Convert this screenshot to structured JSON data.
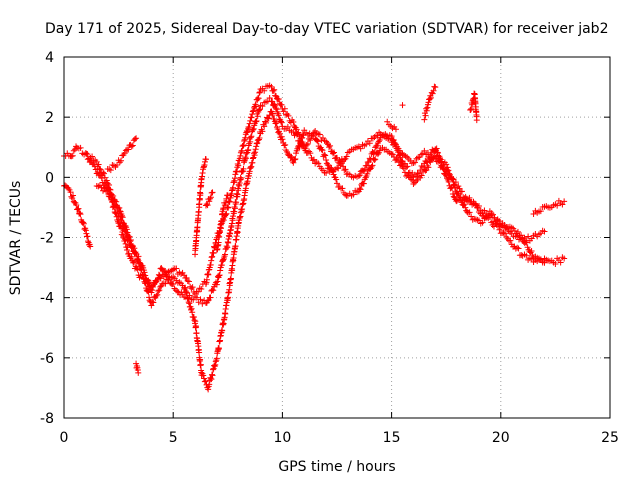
{
  "chart_data": {
    "type": "scatter",
    "title": "Day 171 of 2025, Sidereal Day-to-day VTEC variation (SDTVAR) for receiver jab2",
    "xlabel": "GPS time / hours",
    "ylabel": "SDTVAR / TECUs",
    "xlim": [
      0,
      25
    ],
    "ylim": [
      -8,
      4
    ],
    "x_ticks": [
      0,
      5,
      10,
      15,
      20,
      25
    ],
    "y_ticks": [
      -8,
      -6,
      -4,
      -2,
      0,
      2,
      4
    ],
    "grid": true,
    "marker": "+",
    "series": [
      {
        "name": "SDTVAR",
        "color": "#ff0000",
        "tracks": [
          [
            [
              0.0,
              0.8
            ],
            [
              0.3,
              0.7
            ],
            [
              0.6,
              1.0
            ],
            [
              1.0,
              0.8
            ],
            [
              1.5,
              0.2
            ],
            [
              2.0,
              -0.4
            ],
            [
              2.5,
              -1.5
            ],
            [
              3.0,
              -2.6
            ],
            [
              3.5,
              -3.3
            ],
            [
              4.0,
              -3.6
            ],
            [
              4.5,
              -3.3
            ],
            [
              5.0,
              -3.0
            ],
            [
              5.5,
              -3.3
            ],
            [
              6.0,
              -3.8
            ],
            [
              6.5,
              -3.5
            ],
            [
              7.0,
              -2.0
            ],
            [
              7.5,
              -1.0
            ],
            [
              8.0,
              0.5
            ],
            [
              8.5,
              1.8
            ],
            [
              9.0,
              2.9
            ],
            [
              9.5,
              3.0
            ],
            [
              10.0,
              2.3
            ],
            [
              10.5,
              1.8
            ],
            [
              11.0,
              1.0
            ],
            [
              11.5,
              0.5
            ],
            [
              12.0,
              0.2
            ],
            [
              12.5,
              0.3
            ],
            [
              13.0,
              0.8
            ],
            [
              13.5,
              1.0
            ],
            [
              14.0,
              1.2
            ],
            [
              14.5,
              1.5
            ],
            [
              15.0,
              1.2
            ],
            [
              15.5,
              0.8
            ],
            [
              16.0,
              0.5
            ],
            [
              16.5,
              0.8
            ],
            [
              17.0,
              0.6
            ],
            [
              17.5,
              0.2
            ],
            [
              18.0,
              -0.3
            ],
            [
              18.5,
              -0.8
            ],
            [
              19.0,
              -1.0
            ],
            [
              19.5,
              -1.2
            ],
            [
              20.0,
              -1.5
            ],
            [
              20.5,
              -1.7
            ],
            [
              21.0,
              -2.0
            ],
            [
              21.5,
              -2.6
            ],
            [
              22.0,
              -2.8
            ],
            [
              22.5,
              -2.8
            ],
            [
              22.9,
              -2.7
            ]
          ],
          [
            [
              0.0,
              -0.2
            ],
            [
              0.3,
              -0.5
            ],
            [
              0.6,
              -1.0
            ],
            [
              1.0,
              -1.8
            ],
            [
              1.2,
              -2.3
            ]
          ],
          [
            [
              1.5,
              -0.2
            ],
            [
              2.0,
              -0.5
            ],
            [
              2.5,
              -1.0
            ],
            [
              3.0,
              -2.0
            ],
            [
              3.5,
              -3.0
            ],
            [
              4.0,
              -4.2
            ],
            [
              4.5,
              -3.6
            ],
            [
              5.0,
              -3.3
            ],
            [
              5.5,
              -3.6
            ],
            [
              6.0,
              -4.8
            ],
            [
              6.3,
              -6.5
            ],
            [
              6.6,
              -7.0
            ],
            [
              7.0,
              -6.0
            ],
            [
              7.5,
              -4.0
            ],
            [
              8.0,
              -1.5
            ],
            [
              8.5,
              0.2
            ],
            [
              9.0,
              1.5
            ],
            [
              9.5,
              2.2
            ],
            [
              10.0,
              1.2
            ],
            [
              10.5,
              0.5
            ],
            [
              11.0,
              1.5
            ],
            [
              11.5,
              1.3
            ],
            [
              12.0,
              0.6
            ],
            [
              12.5,
              -0.2
            ],
            [
              13.0,
              -0.6
            ],
            [
              13.5,
              -0.5
            ],
            [
              14.0,
              0.3
            ],
            [
              14.5,
              1.0
            ],
            [
              15.0,
              0.8
            ],
            [
              15.5,
              0.3
            ],
            [
              16.0,
              -0.2
            ],
            [
              16.5,
              0.2
            ],
            [
              17.0,
              0.8
            ],
            [
              17.5,
              0.4
            ],
            [
              18.0,
              -0.5
            ],
            [
              18.5,
              -1.2
            ],
            [
              19.0,
              -1.5
            ],
            [
              19.5,
              -1.3
            ],
            [
              20.0,
              -1.6
            ],
            [
              20.5,
              -1.9
            ],
            [
              21.0,
              -2.1
            ],
            [
              21.5,
              -2.0
            ],
            [
              22.0,
              -1.8
            ]
          ],
          [
            [
              2.0,
              0.2
            ],
            [
              2.5,
              0.5
            ],
            [
              3.0,
              1.0
            ],
            [
              3.3,
              1.3
            ]
          ],
          [
            [
              1.0,
              0.8
            ],
            [
              1.5,
              0.5
            ],
            [
              2.0,
              -0.2
            ],
            [
              2.5,
              -1.2
            ],
            [
              3.0,
              -2.2
            ],
            [
              3.5,
              -2.8
            ],
            [
              4.0,
              -3.8
            ],
            [
              4.5,
              -3.0
            ],
            [
              5.0,
              -3.6
            ],
            [
              5.5,
              -4.0
            ],
            [
              6.0,
              -4.0
            ],
            [
              6.5,
              -4.2
            ],
            [
              7.0,
              -3.5
            ],
            [
              7.5,
              -2.2
            ],
            [
              8.0,
              -0.3
            ],
            [
              8.5,
              1.2
            ],
            [
              9.0,
              2.4
            ],
            [
              9.5,
              2.6
            ],
            [
              10.0,
              1.7
            ],
            [
              10.5,
              1.5
            ],
            [
              11.0,
              1.0
            ],
            [
              11.5,
              1.5
            ],
            [
              12.0,
              1.2
            ],
            [
              12.5,
              0.6
            ],
            [
              13.0,
              0.1
            ],
            [
              13.5,
              0.0
            ],
            [
              14.0,
              0.6
            ],
            [
              14.5,
              1.3
            ],
            [
              15.0,
              1.4
            ],
            [
              15.5,
              0.5
            ],
            [
              16.0,
              0.0
            ],
            [
              16.5,
              0.4
            ],
            [
              17.0,
              1.0
            ],
            [
              17.5,
              0.0
            ],
            [
              18.0,
              -0.8
            ],
            [
              18.5,
              -0.7
            ],
            [
              19.0,
              -1.1
            ],
            [
              19.5,
              -1.4
            ],
            [
              20.0,
              -1.8
            ],
            [
              20.5,
              -2.2
            ],
            [
              21.0,
              -2.6
            ],
            [
              21.5,
              -2.8
            ],
            [
              22.0,
              -2.7
            ]
          ],
          [
            [
              21.5,
              -1.2
            ],
            [
              22.0,
              -1.0
            ],
            [
              22.5,
              -0.9
            ],
            [
              22.9,
              -0.8
            ]
          ],
          [
            [
              6.0,
              -2.5
            ],
            [
              6.3,
              0.0
            ],
            [
              6.5,
              0.6
            ]
          ],
          [
            [
              6.5,
              -1.0
            ],
            [
              6.8,
              -0.5
            ]
          ],
          [
            [
              7.0,
              -2.5
            ],
            [
              7.3,
              -1.0
            ],
            [
              7.5,
              -0.6
            ]
          ],
          [
            [
              3.3,
              -6.2
            ],
            [
              3.4,
              -6.5
            ]
          ],
          [
            [
              16.5,
              2.0
            ],
            [
              16.8,
              2.7
            ],
            [
              17.0,
              3.0
            ]
          ],
          [
            [
              18.6,
              2.2
            ],
            [
              18.8,
              2.8
            ],
            [
              18.9,
              1.9
            ]
          ],
          [
            [
              15.5,
              2.4
            ]
          ],
          [
            [
              14.8,
              1.8
            ],
            [
              15.2,
              1.6
            ]
          ]
        ]
      }
    ]
  }
}
